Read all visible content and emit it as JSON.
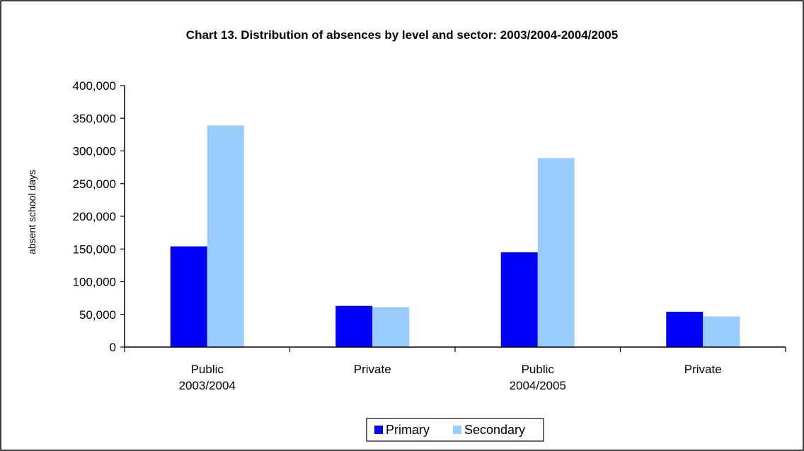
{
  "chart_data": {
    "type": "bar",
    "title": "Chart 13. Distribution of absences by level and sector: 2003/2004-2004/2005",
    "xlabel": "",
    "ylabel": "absent school days",
    "categories": [
      [
        "Public",
        "2003/2004"
      ],
      [
        "Private"
      ],
      [
        "Public",
        "2004/2005"
      ],
      [
        "Private"
      ]
    ],
    "series": [
      {
        "name": "Primary",
        "color": "#0000FF",
        "values": [
          154000,
          63000,
          145000,
          54000
        ]
      },
      {
        "name": "Secondary",
        "color": "#99CCFF",
        "values": [
          339000,
          61000,
          289000,
          47000
        ]
      }
    ],
    "ylim": [
      0,
      400000
    ],
    "yticks": [
      0,
      50000,
      100000,
      150000,
      200000,
      250000,
      300000,
      350000,
      400000
    ],
    "ytick_labels": [
      "0",
      "50,000",
      "100,000",
      "150,000",
      "200,000",
      "250,000",
      "300,000",
      "350,000",
      "400,000"
    ],
    "grid": false,
    "legend": "bottom"
  }
}
